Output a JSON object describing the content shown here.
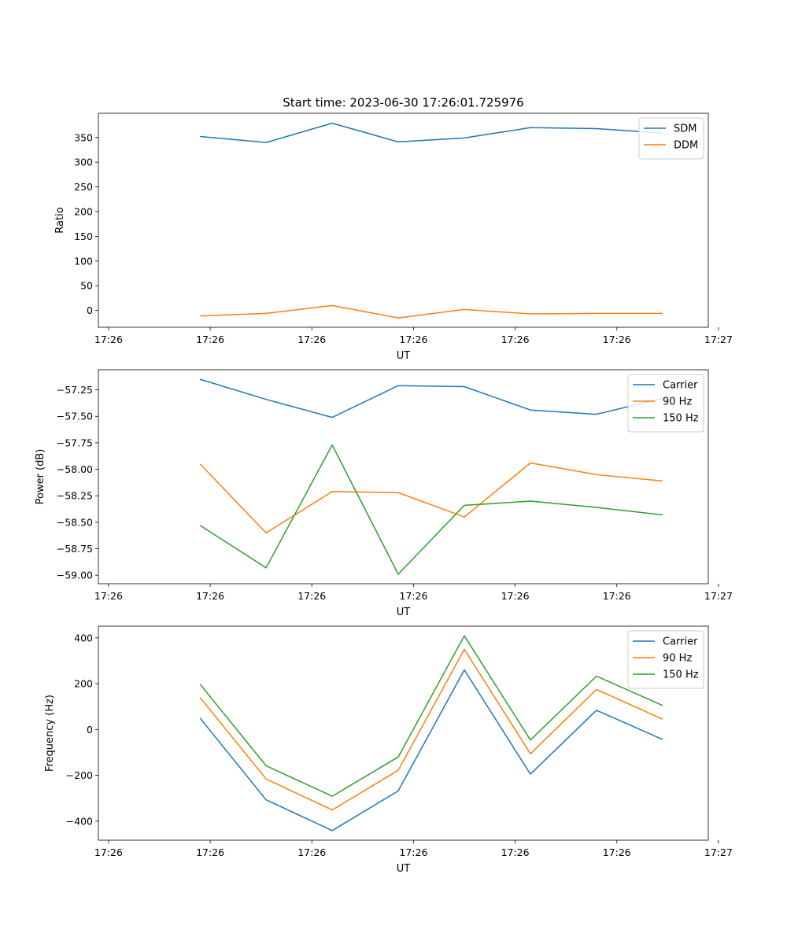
{
  "figure": {
    "title": "Start time: 2023-06-30 17:26:01.725976"
  },
  "chart_data": [
    {
      "type": "line",
      "xlabel": "UT",
      "ylabel": "Ratio",
      "x": [
        1.0,
        1.65,
        2.3,
        2.95,
        3.6,
        4.25,
        4.9,
        5.55
      ],
      "xlim": [
        0,
        6
      ],
      "xticks": [
        0.1,
        1.1,
        2.1,
        3.1,
        4.1,
        5.1,
        6.1
      ],
      "xtick_labels": [
        "17:26",
        "17:26",
        "17:26",
        "17:26",
        "17:26",
        "17:26",
        "17:27"
      ],
      "ylim": [
        -34,
        399
      ],
      "yticks": [
        0,
        50,
        100,
        150,
        200,
        250,
        300,
        350
      ],
      "ytick_labels": [
        "0",
        "50",
        "100",
        "150",
        "200",
        "250",
        "300",
        "350"
      ],
      "legend_position": "top-right",
      "series": [
        {
          "name": "SDM",
          "color": "#1f77b4",
          "values": [
            352,
            340,
            379,
            341,
            349,
            370,
            368,
            359
          ]
        },
        {
          "name": "DDM",
          "color": "#ff7f0e",
          "values": [
            -11,
            -6,
            10,
            -15,
            2,
            -7,
            -6,
            -6
          ]
        }
      ]
    },
    {
      "type": "line",
      "xlabel": "UT",
      "ylabel": "Power (dB)",
      "x": [
        1.0,
        1.65,
        2.3,
        2.95,
        3.6,
        4.25,
        4.9,
        5.55
      ],
      "xlim": [
        0,
        6
      ],
      "xticks": [
        0.1,
        1.1,
        2.1,
        3.1,
        4.1,
        5.1,
        6.1
      ],
      "xtick_labels": [
        "17:26",
        "17:26",
        "17:26",
        "17:26",
        "17:26",
        "17:26",
        "17:27"
      ],
      "ylim": [
        -59.08,
        -57.06
      ],
      "yticks": [
        -59.0,
        -58.75,
        -58.5,
        -58.25,
        -58.0,
        -57.75,
        -57.5,
        -57.25
      ],
      "ytick_labels": [
        "−59.00",
        "−58.75",
        "−58.50",
        "−58.25",
        "−58.00",
        "−57.75",
        "−57.50",
        "−57.25"
      ],
      "legend_position": "top-right",
      "series": [
        {
          "name": "Carrier",
          "color": "#1f77b4",
          "values": [
            -57.15,
            -57.34,
            -57.51,
            -57.21,
            -57.22,
            -57.44,
            -57.48,
            -57.33
          ]
        },
        {
          "name": "90 Hz",
          "color": "#ff7f0e",
          "values": [
            -57.95,
            -58.6,
            -58.21,
            -58.22,
            -58.45,
            -57.94,
            -58.05,
            -58.11
          ]
        },
        {
          "name": "150 Hz",
          "color": "#2ca02c",
          "values": [
            -58.53,
            -58.93,
            -57.77,
            -58.99,
            -58.34,
            -58.3,
            -58.36,
            -58.43
          ]
        }
      ]
    },
    {
      "type": "line",
      "xlabel": "UT",
      "ylabel": "Frequency (Hz)",
      "x": [
        1.0,
        1.65,
        2.3,
        2.95,
        3.6,
        4.25,
        4.9,
        5.55
      ],
      "xlim": [
        0,
        6
      ],
      "xticks": [
        0.1,
        1.1,
        2.1,
        3.1,
        4.1,
        5.1,
        6.1
      ],
      "xtick_labels": [
        "17:26",
        "17:26",
        "17:26",
        "17:26",
        "17:26",
        "17:26",
        "17:27"
      ],
      "ylim": [
        -483,
        451
      ],
      "yticks": [
        -400,
        -200,
        0,
        200,
        400
      ],
      "ytick_labels": [
        "−400",
        "−200",
        "0",
        "200",
        "400"
      ],
      "legend_position": "top-right",
      "series": [
        {
          "name": "Carrier",
          "color": "#1f77b4",
          "values": [
            50,
            -307,
            -441,
            -268,
            260,
            -195,
            84,
            -43
          ]
        },
        {
          "name": "90 Hz",
          "color": "#ff7f0e",
          "values": [
            140,
            -216,
            -351,
            -178,
            350,
            -106,
            175,
            45
          ]
        },
        {
          "name": "150 Hz",
          "color": "#2ca02c",
          "values": [
            198,
            -158,
            -291,
            -120,
            409,
            -46,
            233,
            105
          ]
        }
      ]
    }
  ]
}
